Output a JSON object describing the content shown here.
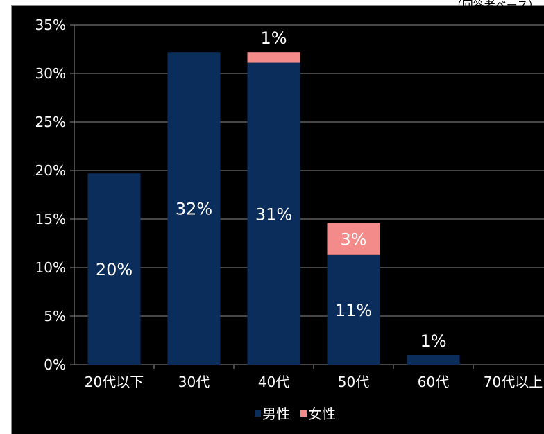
{
  "corner_note": "（回答者ベース）",
  "chart_data": {
    "type": "bar",
    "stacked": true,
    "categories": [
      "20代以下",
      "30代",
      "40代",
      "50代",
      "60代",
      "70代以上"
    ],
    "series": [
      {
        "name": "男性",
        "color": "#0b2d5b",
        "values": [
          19.7,
          32.2,
          31.1,
          11.3,
          1.0,
          0
        ],
        "labels": [
          "20%",
          "32%",
          "31%",
          "11%",
          "1%",
          ""
        ]
      },
      {
        "name": "女性",
        "color": "#f38b8b",
        "values": [
          0,
          0,
          1.1,
          3.3,
          0,
          0
        ],
        "labels": [
          "",
          "",
          "1%",
          "3%",
          "",
          ""
        ]
      }
    ],
    "ylim": [
      0,
      35
    ],
    "yticks": [
      "0%",
      "5%",
      "10%",
      "15%",
      "20%",
      "25%",
      "30%",
      "35%"
    ],
    "grid": true,
    "legend": "bottom"
  }
}
